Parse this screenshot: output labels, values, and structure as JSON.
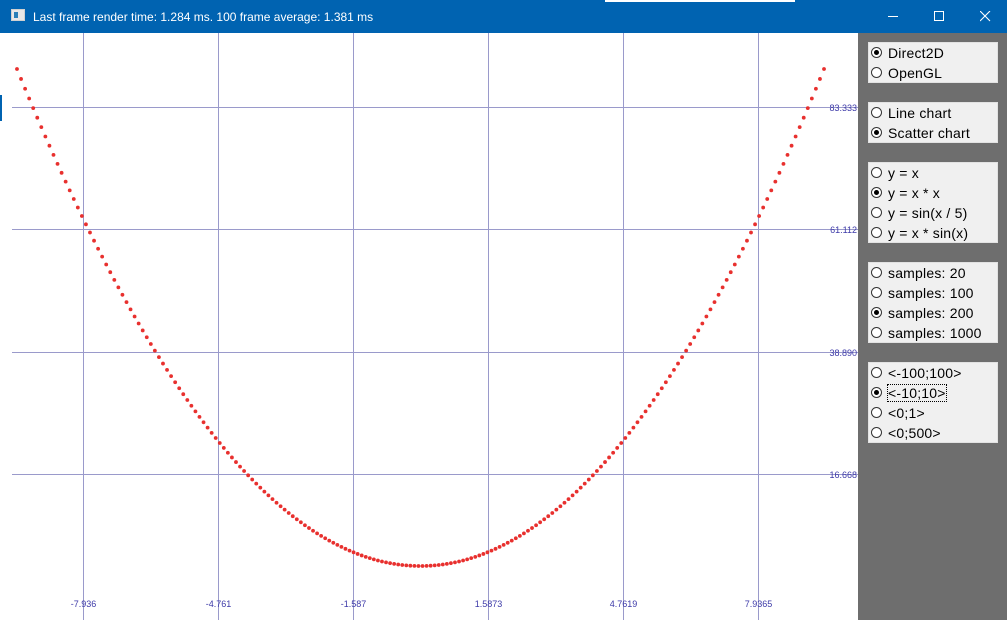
{
  "window": {
    "title": "Last frame render time: 1.284 ms. 100 frame average: 1.381 ms",
    "app_icon": "window-app-icon",
    "controls": [
      "minimize-icon",
      "maximize-icon",
      "close-icon"
    ],
    "accent_color": "#0063b1"
  },
  "chart_data": {
    "type": "scatter",
    "function": "y = x * x",
    "samples": 200,
    "x_range": [
      -9.5,
      9.5
    ],
    "y_range": [
      0,
      90.25
    ],
    "grid": true,
    "point_color": "#e8302e",
    "grid_color": "#9a9acb",
    "label_color": "#3d3aa8",
    "x_gridlines": [
      -7.936,
      -4.761,
      -1.587,
      1.5873,
      4.7619,
      7.9365
    ],
    "x_tick_labels": [
      "-7.936",
      "-4.761",
      "-1.587",
      "1.5873",
      "4.7619",
      "7.9365"
    ],
    "y_gridlines": [
      83.333,
      61.112,
      38.89,
      16.668
    ],
    "y_tick_labels": [
      "83.333",
      "61.112",
      "38.890",
      "16.668"
    ]
  },
  "panel": {
    "background": "#6e6e6e",
    "groups": [
      {
        "name": "renderer",
        "options": [
          {
            "label": "Direct2D",
            "selected": true
          },
          {
            "label": "OpenGL",
            "selected": false
          }
        ]
      },
      {
        "name": "chart-type",
        "options": [
          {
            "label": "Line chart",
            "selected": false
          },
          {
            "label": "Scatter chart",
            "selected": true
          }
        ]
      },
      {
        "name": "function",
        "options": [
          {
            "label": "y = x",
            "selected": false
          },
          {
            "label": "y = x * x",
            "selected": true
          },
          {
            "label": "y = sin(x / 5)",
            "selected": false
          },
          {
            "label": "y = x * sin(x)",
            "selected": false
          }
        ]
      },
      {
        "name": "samples",
        "options": [
          {
            "label": "samples: 20",
            "selected": false
          },
          {
            "label": "samples: 100",
            "selected": false
          },
          {
            "label": "samples: 200",
            "selected": true
          },
          {
            "label": "samples: 1000",
            "selected": false
          }
        ]
      },
      {
        "name": "range",
        "options": [
          {
            "label": "<-100;100>",
            "selected": false
          },
          {
            "label": "<-10;10>",
            "selected": true
          },
          {
            "label": "<0;1>",
            "selected": false
          },
          {
            "label": "<0;500>",
            "selected": false
          }
        ]
      }
    ]
  }
}
